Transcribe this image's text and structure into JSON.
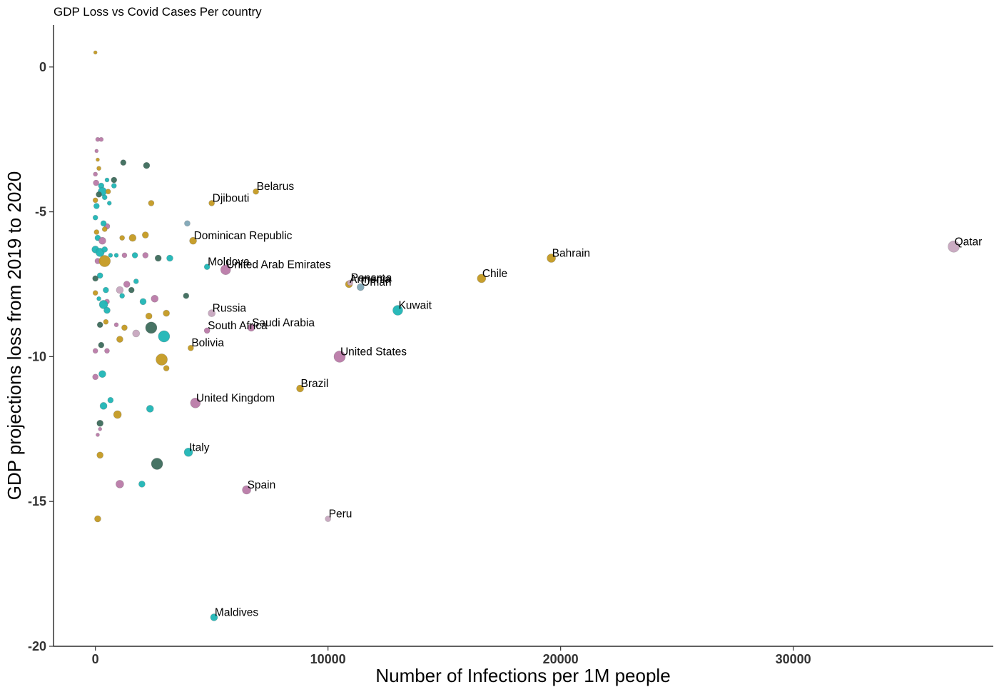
{
  "chart_data": {
    "type": "scatter",
    "title": "GDP Loss vs Covid Cases Per country",
    "xlabel": "Number of Infections per 1M people",
    "ylabel": "GDP projections loss from 2019 to 2020",
    "xlim": [
      -1800,
      38600
    ],
    "ylim": [
      -20,
      1.45
    ],
    "x_ticks": [
      {
        "value": 0,
        "label": "0"
      },
      {
        "value": 10000,
        "label": "10000"
      },
      {
        "value": 20000,
        "label": "20000"
      },
      {
        "value": 30000,
        "label": "30000"
      }
    ],
    "y_ticks": [
      {
        "value": 0,
        "label": "0"
      },
      {
        "value": -5,
        "label": "-5"
      },
      {
        "value": -10,
        "label": "-10"
      },
      {
        "value": -15,
        "label": "-15"
      },
      {
        "value": -20,
        "label": "-20"
      }
    ],
    "grid": false,
    "legend": "none",
    "colors": {
      "gold": "#c49a22",
      "pink": "#b97aa8",
      "teal": "#1fb5b5",
      "dark": "#3d6b5c",
      "pale": "#c7a6bf",
      "steel": "#7fa6b6"
    },
    "points": [
      {
        "x": 36900,
        "y": -6.2,
        "size": 8,
        "color": "pale",
        "label": "Qatar"
      },
      {
        "x": 19600,
        "y": -6.6,
        "size": 6,
        "color": "gold",
        "label": "Bahrain"
      },
      {
        "x": 16600,
        "y": -7.3,
        "size": 6,
        "color": "gold",
        "label": "Chile"
      },
      {
        "x": 13000,
        "y": -8.4,
        "size": 7,
        "color": "teal",
        "label": "Kuwait"
      },
      {
        "x": 11400,
        "y": -7.6,
        "size": 5,
        "color": "steel",
        "label": "Oman"
      },
      {
        "x": 10900,
        "y": -7.5,
        "size": 5,
        "color": "gold",
        "label": "Armenia"
      },
      {
        "x": 10950,
        "y": -7.45,
        "size": 4,
        "color": "pale",
        "label": "Panama"
      },
      {
        "x": 10500,
        "y": -10.0,
        "size": 8,
        "color": "pink",
        "label": "United States"
      },
      {
        "x": 10000,
        "y": -15.6,
        "size": 4,
        "color": "pale",
        "label": "Peru"
      },
      {
        "x": 8800,
        "y": -11.1,
        "size": 5,
        "color": "gold",
        "label": "Brazil"
      },
      {
        "x": 6900,
        "y": -4.3,
        "size": 4,
        "color": "gold",
        "label": "Belarus"
      },
      {
        "x": 6700,
        "y": -9.0,
        "size": 5,
        "color": "pink",
        "label": "Saudi Arabia"
      },
      {
        "x": 6500,
        "y": -14.6,
        "size": 6,
        "color": "pink",
        "label": "Spain"
      },
      {
        "x": 5600,
        "y": -7.0,
        "size": 7,
        "color": "pink",
        "label": "United Arab Emirates"
      },
      {
        "x": 5100,
        "y": -19.0,
        "size": 5,
        "color": "teal",
        "label": "Maldives"
      },
      {
        "x": 5000,
        "y": -4.7,
        "size": 4,
        "color": "gold",
        "label": "Djibouti"
      },
      {
        "x": 5000,
        "y": -8.5,
        "size": 5,
        "color": "pale",
        "label": "Russia"
      },
      {
        "x": 4800,
        "y": -6.9,
        "size": 4,
        "color": "teal",
        "label": "Moldova"
      },
      {
        "x": 4800,
        "y": -9.1,
        "size": 4,
        "color": "pink",
        "label": "South Africa"
      },
      {
        "x": 4300,
        "y": -11.6,
        "size": 7,
        "color": "pink",
        "label": "United Kingdom"
      },
      {
        "x": 4200,
        "y": -6.0,
        "size": 5,
        "color": "gold",
        "label": "Dominican Republic"
      },
      {
        "x": 4100,
        "y": -9.7,
        "size": 4,
        "color": "gold",
        "label": "Bolivia"
      },
      {
        "x": 4000,
        "y": -13.3,
        "size": 6,
        "color": "teal",
        "label": "Italy"
      },
      {
        "x": 0,
        "y": 0.5,
        "size": 2.5,
        "color": "gold"
      },
      {
        "x": 100,
        "y": -2.5,
        "size": 3,
        "color": "pink"
      },
      {
        "x": 250,
        "y": -2.5,
        "size": 3,
        "color": "pink"
      },
      {
        "x": 50,
        "y": -2.9,
        "size": 2.5,
        "color": "pink"
      },
      {
        "x": 100,
        "y": -3.2,
        "size": 2.5,
        "color": "gold"
      },
      {
        "x": 1200,
        "y": -3.3,
        "size": 4,
        "color": "dark"
      },
      {
        "x": 2200,
        "y": -3.4,
        "size": 4.5,
        "color": "dark"
      },
      {
        "x": 150,
        "y": -3.5,
        "size": 3,
        "color": "gold"
      },
      {
        "x": 0,
        "y": -3.7,
        "size": 3,
        "color": "pink"
      },
      {
        "x": 500,
        "y": -3.9,
        "size": 3,
        "color": "teal"
      },
      {
        "x": 800,
        "y": -3.9,
        "size": 4,
        "color": "dark"
      },
      {
        "x": 30,
        "y": -4.0,
        "size": 4,
        "color": "pink"
      },
      {
        "x": 250,
        "y": -4.1,
        "size": 4,
        "color": "teal"
      },
      {
        "x": 800,
        "y": -4.1,
        "size": 3.5,
        "color": "teal"
      },
      {
        "x": 300,
        "y": -4.3,
        "size": 6,
        "color": "teal"
      },
      {
        "x": 550,
        "y": -4.3,
        "size": 3.5,
        "color": "gold"
      },
      {
        "x": 150,
        "y": -4.4,
        "size": 4,
        "color": "dark"
      },
      {
        "x": 400,
        "y": -4.5,
        "size": 3.5,
        "color": "teal"
      },
      {
        "x": 0,
        "y": -4.6,
        "size": 3.5,
        "color": "gold"
      },
      {
        "x": 2400,
        "y": -4.7,
        "size": 4,
        "color": "gold"
      },
      {
        "x": 50,
        "y": -4.8,
        "size": 4,
        "color": "teal"
      },
      {
        "x": 600,
        "y": -4.7,
        "size": 3,
        "color": "teal"
      },
      {
        "x": 0,
        "y": -5.2,
        "size": 3.5,
        "color": "teal"
      },
      {
        "x": 500,
        "y": -5.5,
        "size": 4,
        "color": "pink"
      },
      {
        "x": 350,
        "y": -5.4,
        "size": 4,
        "color": "teal"
      },
      {
        "x": 3950,
        "y": -5.4,
        "size": 4,
        "color": "steel"
      },
      {
        "x": 50,
        "y": -5.7,
        "size": 3.5,
        "color": "gold"
      },
      {
        "x": 400,
        "y": -5.6,
        "size": 3.5,
        "color": "gold"
      },
      {
        "x": 1150,
        "y": -5.9,
        "size": 3.5,
        "color": "gold"
      },
      {
        "x": 1600,
        "y": -5.9,
        "size": 5,
        "color": "gold"
      },
      {
        "x": 2150,
        "y": -5.8,
        "size": 4.5,
        "color": "gold"
      },
      {
        "x": 100,
        "y": -5.9,
        "size": 4,
        "color": "teal"
      },
      {
        "x": 300,
        "y": -6.0,
        "size": 5,
        "color": "pink"
      },
      {
        "x": 0,
        "y": -6.3,
        "size": 5,
        "color": "teal"
      },
      {
        "x": 200,
        "y": -6.4,
        "size": 6,
        "color": "teal"
      },
      {
        "x": 400,
        "y": -6.3,
        "size": 4,
        "color": "teal"
      },
      {
        "x": 650,
        "y": -6.5,
        "size": 3,
        "color": "teal"
      },
      {
        "x": 900,
        "y": -6.5,
        "size": 3,
        "color": "teal"
      },
      {
        "x": 1250,
        "y": -6.5,
        "size": 3.5,
        "color": "pink"
      },
      {
        "x": 1700,
        "y": -6.5,
        "size": 4,
        "color": "teal"
      },
      {
        "x": 2150,
        "y": -6.5,
        "size": 4,
        "color": "pink"
      },
      {
        "x": 2700,
        "y": -6.6,
        "size": 4.5,
        "color": "dark"
      },
      {
        "x": 3200,
        "y": -6.6,
        "size": 4.5,
        "color": "teal"
      },
      {
        "x": 100,
        "y": -6.7,
        "size": 4,
        "color": "pink"
      },
      {
        "x": 400,
        "y": -6.7,
        "size": 8,
        "color": "gold"
      },
      {
        "x": 200,
        "y": -7.2,
        "size": 4,
        "color": "teal"
      },
      {
        "x": 0,
        "y": -7.3,
        "size": 4,
        "color": "dark"
      },
      {
        "x": 1350,
        "y": -7.5,
        "size": 4.5,
        "color": "pink"
      },
      {
        "x": 1750,
        "y": -7.4,
        "size": 3.5,
        "color": "teal"
      },
      {
        "x": 1050,
        "y": -7.7,
        "size": 5,
        "color": "pale"
      },
      {
        "x": 1550,
        "y": -7.7,
        "size": 4,
        "color": "dark"
      },
      {
        "x": 450,
        "y": -7.7,
        "size": 4,
        "color": "teal"
      },
      {
        "x": 0,
        "y": -7.8,
        "size": 3.5,
        "color": "gold"
      },
      {
        "x": 1150,
        "y": -7.9,
        "size": 3.5,
        "color": "teal"
      },
      {
        "x": 3900,
        "y": -7.9,
        "size": 4,
        "color": "dark"
      },
      {
        "x": 2550,
        "y": -8.0,
        "size": 5,
        "color": "pink"
      },
      {
        "x": 2050,
        "y": -8.1,
        "size": 4.5,
        "color": "teal"
      },
      {
        "x": 500,
        "y": -8.1,
        "size": 3.5,
        "color": "pink"
      },
      {
        "x": 150,
        "y": -8.0,
        "size": 3,
        "color": "teal"
      },
      {
        "x": 350,
        "y": -8.2,
        "size": 6,
        "color": "teal"
      },
      {
        "x": 500,
        "y": -8.4,
        "size": 4.5,
        "color": "teal"
      },
      {
        "x": 2300,
        "y": -8.6,
        "size": 4.5,
        "color": "gold"
      },
      {
        "x": 3050,
        "y": -8.5,
        "size": 4.5,
        "color": "gold"
      },
      {
        "x": 200,
        "y": -8.9,
        "size": 4,
        "color": "dark"
      },
      {
        "x": 450,
        "y": -8.8,
        "size": 3.5,
        "color": "gold"
      },
      {
        "x": 900,
        "y": -8.9,
        "size": 3,
        "color": "pink"
      },
      {
        "x": 1250,
        "y": -9.0,
        "size": 4,
        "color": "gold"
      },
      {
        "x": 2400,
        "y": -9.0,
        "size": 8,
        "color": "dark"
      },
      {
        "x": 1750,
        "y": -9.2,
        "size": 5,
        "color": "pale"
      },
      {
        "x": 2950,
        "y": -9.3,
        "size": 8,
        "color": "teal"
      },
      {
        "x": 1050,
        "y": -9.4,
        "size": 4.5,
        "color": "gold"
      },
      {
        "x": 250,
        "y": -9.6,
        "size": 4,
        "color": "dark"
      },
      {
        "x": 0,
        "y": -9.8,
        "size": 3.5,
        "color": "pink"
      },
      {
        "x": 500,
        "y": -9.8,
        "size": 3.5,
        "color": "pink"
      },
      {
        "x": 2850,
        "y": -10.1,
        "size": 8,
        "color": "gold"
      },
      {
        "x": 3050,
        "y": -10.4,
        "size": 4,
        "color": "gold"
      },
      {
        "x": 0,
        "y": -10.7,
        "size": 4,
        "color": "pink"
      },
      {
        "x": 300,
        "y": -10.6,
        "size": 5,
        "color": "teal"
      },
      {
        "x": 650,
        "y": -11.5,
        "size": 4,
        "color": "teal"
      },
      {
        "x": 350,
        "y": -11.7,
        "size": 5,
        "color": "teal"
      },
      {
        "x": 2350,
        "y": -11.8,
        "size": 5,
        "color": "teal"
      },
      {
        "x": 950,
        "y": -12.0,
        "size": 5.5,
        "color": "gold"
      },
      {
        "x": 200,
        "y": -12.3,
        "size": 4.5,
        "color": "dark"
      },
      {
        "x": 200,
        "y": -12.5,
        "size": 2.5,
        "color": "pink"
      },
      {
        "x": 100,
        "y": -12.7,
        "size": 2.5,
        "color": "pink"
      },
      {
        "x": 200,
        "y": -13.4,
        "size": 4.5,
        "color": "gold"
      },
      {
        "x": 2650,
        "y": -13.7,
        "size": 8,
        "color": "dark"
      },
      {
        "x": 2000,
        "y": -14.4,
        "size": 4.5,
        "color": "teal"
      },
      {
        "x": 1050,
        "y": -14.4,
        "size": 5.5,
        "color": "pink"
      },
      {
        "x": 100,
        "y": -15.6,
        "size": 4.5,
        "color": "gold"
      }
    ]
  }
}
